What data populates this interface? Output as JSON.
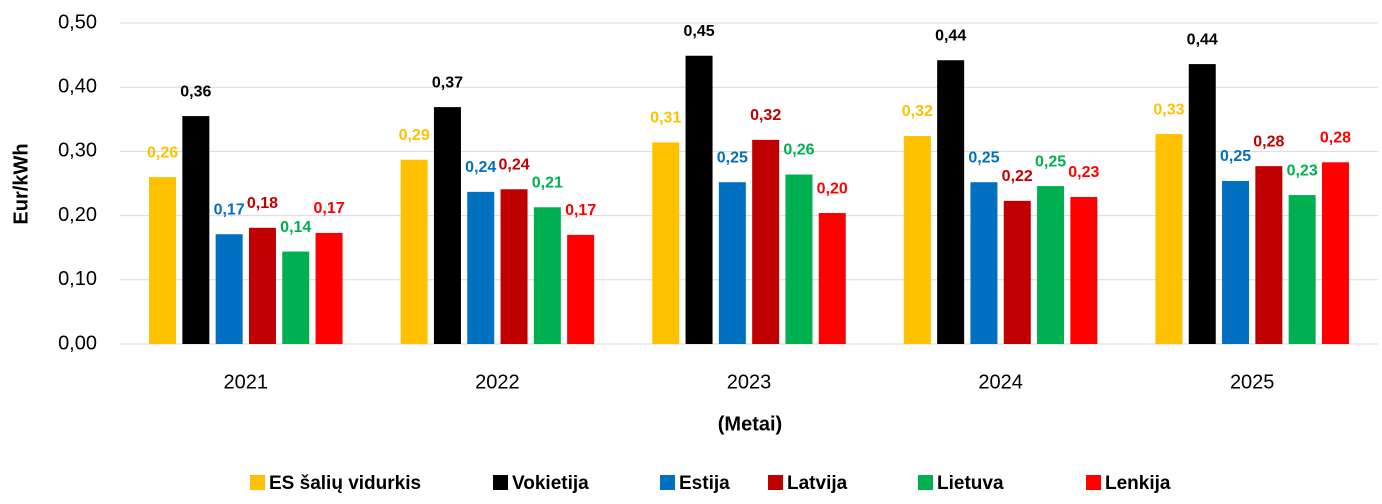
{
  "chart_data": {
    "type": "bar",
    "y_label": "Eur/kWh",
    "x_label": "(Metai)",
    "categories": [
      "2021",
      "2022",
      "2023",
      "2024",
      "2025"
    ],
    "series": [
      {
        "name": "ES šalių vidurkis",
        "color": "#FFC000",
        "values": [
          0.26,
          0.287,
          0.314,
          0.324,
          0.327
        ],
        "value_labels": [
          "0,26",
          "0,29",
          "0,31",
          "0,32",
          "0,33"
        ]
      },
      {
        "name": "Vokietija",
        "color": "#000000",
        "values": [
          0.355,
          0.369,
          0.449,
          0.442,
          0.436
        ],
        "value_labels": [
          "0,36",
          "0,37",
          "0,45",
          "0,44",
          "0,44"
        ]
      },
      {
        "name": "Estija",
        "color": "#0070C0",
        "values": [
          0.171,
          0.237,
          0.252,
          0.252,
          0.254
        ],
        "value_labels": [
          "0,17",
          "0,24",
          "0,25",
          "0,25",
          "0,25"
        ]
      },
      {
        "name": "Latvija",
        "color": "#C00000",
        "values": [
          0.181,
          0.241,
          0.318,
          0.223,
          0.277
        ],
        "value_labels": [
          "0,18",
          "0,24",
          "0,32",
          "0,22",
          "0,28"
        ]
      },
      {
        "name": "Lietuva",
        "color": "#00B050",
        "values": [
          0.144,
          0.213,
          0.264,
          0.246,
          0.232
        ],
        "value_labels": [
          "0,14",
          "0,21",
          "0,26",
          "0,25",
          "0,23"
        ]
      },
      {
        "name": "Lenkija",
        "color": "#FF0000",
        "values": [
          0.173,
          0.17,
          0.204,
          0.229,
          0.283
        ],
        "value_labels": [
          "0,17",
          "0,17",
          "0,20",
          "0,23",
          "0,28"
        ]
      }
    ],
    "ylim": [
      0,
      0.5
    ],
    "yticks": [
      {
        "value": 0,
        "label": "0,00"
      },
      {
        "value": 0.1,
        "label": "0,10"
      },
      {
        "value": 0.2,
        "label": "0,20"
      },
      {
        "value": 0.3,
        "label": "0,30"
      },
      {
        "value": 0.4,
        "label": "0,40"
      },
      {
        "value": 0.5,
        "label": "0,50"
      }
    ],
    "grid": true,
    "legend": "bottom"
  }
}
